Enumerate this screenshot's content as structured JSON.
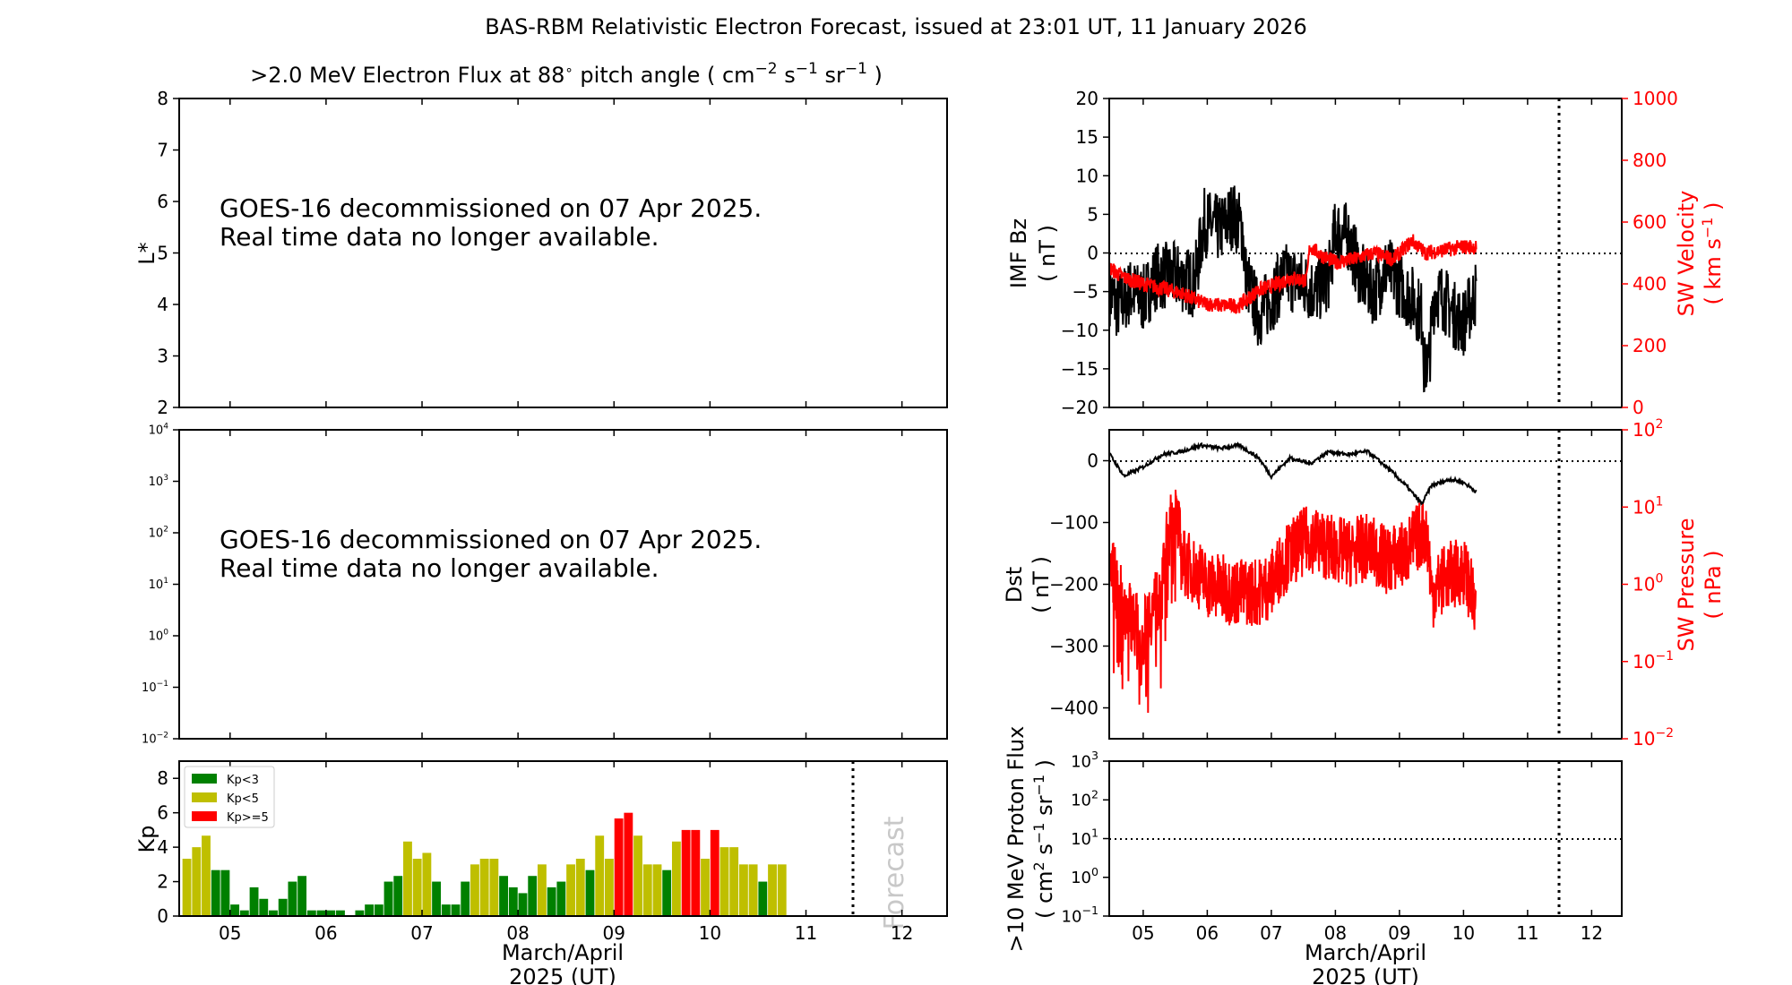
{
  "colors": {
    "kp_low": "#008000",
    "kp_mid": "#bfbf00",
    "kp_high": "#ff0000",
    "sw": "#ff0000",
    "line": "#000000",
    "forecast_text": "#c8c8c8"
  },
  "figure_title": "BAS-RBM Relativistic Electron Forecast, issued at 23:01 UT, 11 January 2026",
  "panel_title": ">2.0 MeV Electron Flux at 88",
  "panel_title_units": "pitch angle ( cm",
  "panel_title_rest": " s",
  "panel_title_sr": " sr",
  "goes_msg": {
    "line1": "GOES-16 decommissioned on 07 Apr 2025.",
    "line2": "Real time data no longer available."
  },
  "xlabel": {
    "line1": "March/April",
    "line2": "2025 (UT)"
  },
  "xticks": [
    "05",
    "06",
    "07",
    "08",
    "09",
    "10",
    "11",
    "12"
  ],
  "chart_data": [
    {
      "id": "lstar",
      "type": "line",
      "ylabel": "L*",
      "ylim": [
        2,
        8
      ],
      "yticks": [
        "2",
        "3",
        "4",
        "5",
        "6",
        "7",
        "8"
      ],
      "series": []
    },
    {
      "id": "flux",
      "type": "line",
      "yscale": "log",
      "ylim": [
        0.01,
        10000
      ],
      "yticks": [
        "10",
        "10",
        "10",
        "10",
        "10",
        "10",
        "10"
      ],
      "yexp": [
        "−2",
        "−1",
        "0",
        "1",
        "2",
        "3",
        "4"
      ],
      "series": []
    },
    {
      "id": "kp",
      "type": "bar",
      "ylabel": "Kp",
      "ylim": [
        0,
        9
      ],
      "yticks": [
        "0",
        "2",
        "4",
        "6",
        "8"
      ],
      "xlim": [
        4.47,
        12.47
      ],
      "bar_width": 0.1,
      "legend": [
        "Kp<3",
        "Kp<5",
        "Kp>=5"
      ],
      "forecast_label": "Forecast",
      "forecast_start": 11.47,
      "bars": [
        [
          4.55,
          3.33
        ],
        [
          4.65,
          4.0
        ],
        [
          4.75,
          4.67
        ],
        [
          4.85,
          2.67
        ],
        [
          4.95,
          2.67
        ],
        [
          5.05,
          0.67
        ],
        [
          5.15,
          0.33
        ],
        [
          5.25,
          1.67
        ],
        [
          5.35,
          1.0
        ],
        [
          5.45,
          0.33
        ],
        [
          5.55,
          1.0
        ],
        [
          5.65,
          2.0
        ],
        [
          5.75,
          2.33
        ],
        [
          5.85,
          0.33
        ],
        [
          5.95,
          0.33
        ],
        [
          6.05,
          0.33
        ],
        [
          6.15,
          0.33
        ],
        [
          6.25,
          0.0
        ],
        [
          6.35,
          0.33
        ],
        [
          6.45,
          0.67
        ],
        [
          6.55,
          0.67
        ],
        [
          6.65,
          2.0
        ],
        [
          6.75,
          2.33
        ],
        [
          6.85,
          4.33
        ],
        [
          6.95,
          3.33
        ],
        [
          7.05,
          3.67
        ],
        [
          7.15,
          2.0
        ],
        [
          7.25,
          0.67
        ],
        [
          7.35,
          0.67
        ],
        [
          7.45,
          2.0
        ],
        [
          7.55,
          3.0
        ],
        [
          7.65,
          3.33
        ],
        [
          7.75,
          3.33
        ],
        [
          7.85,
          2.33
        ],
        [
          7.95,
          1.67
        ],
        [
          8.05,
          1.33
        ],
        [
          8.15,
          2.33
        ],
        [
          8.25,
          3.0
        ],
        [
          8.35,
          1.67
        ],
        [
          8.45,
          2.0
        ],
        [
          8.55,
          3.0
        ],
        [
          8.65,
          3.33
        ],
        [
          8.75,
          2.67
        ],
        [
          8.85,
          4.67
        ],
        [
          8.95,
          3.33
        ],
        [
          9.05,
          5.67
        ],
        [
          9.15,
          6.0
        ],
        [
          9.25,
          4.67
        ],
        [
          9.35,
          3.0
        ],
        [
          9.45,
          3.0
        ],
        [
          9.55,
          2.67
        ],
        [
          9.65,
          4.33
        ],
        [
          9.75,
          5.0
        ],
        [
          9.85,
          5.0
        ],
        [
          9.95,
          3.33
        ],
        [
          10.05,
          5.0
        ],
        [
          10.15,
          4.0
        ],
        [
          10.25,
          4.0
        ],
        [
          10.35,
          3.0
        ],
        [
          10.45,
          3.0
        ],
        [
          10.55,
          2.0
        ],
        [
          10.65,
          3.0
        ],
        [
          10.75,
          3.0
        ]
      ]
    },
    {
      "id": "imf",
      "type": "line",
      "ylabel": "IMF Bz",
      "yunits": "( nT )",
      "ylim": [
        -20,
        20
      ],
      "yticks": [
        "−20",
        "−15",
        "−10",
        "−5",
        "0",
        "5",
        "10",
        "15",
        "20"
      ],
      "y2label": "SW Velocity",
      "y2units": "( km s",
      "y2lim": [
        0,
        1000
      ],
      "y2ticks": [
        "0",
        "200",
        "400",
        "600",
        "800",
        "1000"
      ],
      "series": [
        {
          "name": "IMF Bz",
          "color": "#000000"
        },
        {
          "name": "SW Velocity",
          "color": "#ff0000"
        }
      ]
    },
    {
      "id": "dst",
      "type": "line",
      "ylabel": "Dst",
      "yunits": "( nT )",
      "ylim": [
        -450,
        50
      ],
      "yticks": [
        "−400",
        "−300",
        "−200",
        "−100",
        "0"
      ],
      "y2label": "SW Pressure",
      "y2units": "( nPa )",
      "y2scale": "log",
      "y2lim": [
        0.01,
        100
      ],
      "y2ticks": [
        "10",
        "10",
        "10",
        "10",
        "10"
      ],
      "y2exp": [
        "−2",
        "−1",
        "0",
        "1",
        "2"
      ],
      "series": [
        {
          "name": "Dst",
          "color": "#000000"
        },
        {
          "name": "SW Pressure",
          "color": "#ff0000"
        }
      ]
    },
    {
      "id": "proton",
      "type": "line",
      "ylabel": ">10 MeV Proton Flux",
      "yunits": "( cm",
      "yscale": "log",
      "ylim": [
        0.1,
        1000
      ],
      "yticks": [
        "10",
        "10",
        "10",
        "10",
        "10"
      ],
      "yexp": [
        "−1",
        "0",
        "1",
        "2",
        "3"
      ],
      "threshold": 10,
      "series": []
    }
  ]
}
